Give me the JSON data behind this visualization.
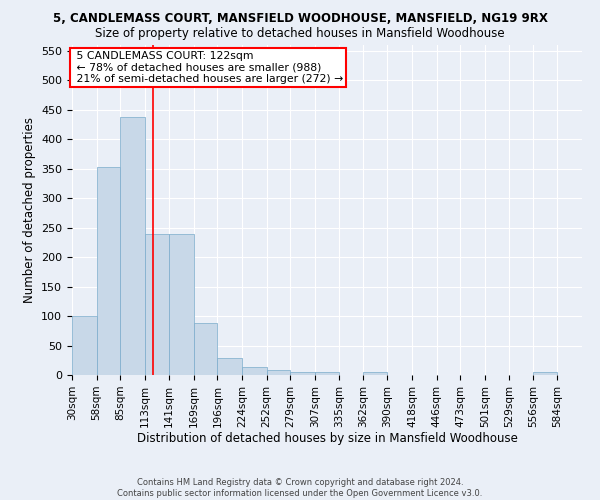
{
  "title": "5, CANDLEMASS COURT, MANSFIELD WOODHOUSE, MANSFIELD, NG19 9RX",
  "subtitle": "Size of property relative to detached houses in Mansfield Woodhouse",
  "xlabel": "Distribution of detached houses by size in Mansfield Woodhouse",
  "ylabel": "Number of detached properties",
  "footer_line1": "Contains HM Land Registry data © Crown copyright and database right 2024.",
  "footer_line2": "Contains public sector information licensed under the Open Government Licence v3.0.",
  "annotation_title": "5 CANDLEMASS COURT: 122sqm",
  "annotation_line2": "← 78% of detached houses are smaller (988)",
  "annotation_line3": "21% of semi-detached houses are larger (272) →",
  "bar_color": "#c8d8e8",
  "bar_edge_color": "#7aabcb",
  "redline_x": 122,
  "bins": [
    30,
    58,
    85,
    113,
    141,
    169,
    196,
    224,
    252,
    279,
    307,
    335,
    362,
    390,
    418,
    446,
    473,
    501,
    529,
    556,
    584
  ],
  "bar_heights": [
    100,
    353,
    438,
    240,
    240,
    88,
    29,
    13,
    9,
    5,
    5,
    0,
    5,
    0,
    0,
    0,
    0,
    0,
    0,
    5
  ],
  "ylim": [
    0,
    560
  ],
  "yticks": [
    0,
    50,
    100,
    150,
    200,
    250,
    300,
    350,
    400,
    450,
    500,
    550
  ],
  "bg_color": "#eaeff7",
  "grid_color": "#ffffff",
  "title_fontsize": 8.5,
  "subtitle_fontsize": 8.5
}
